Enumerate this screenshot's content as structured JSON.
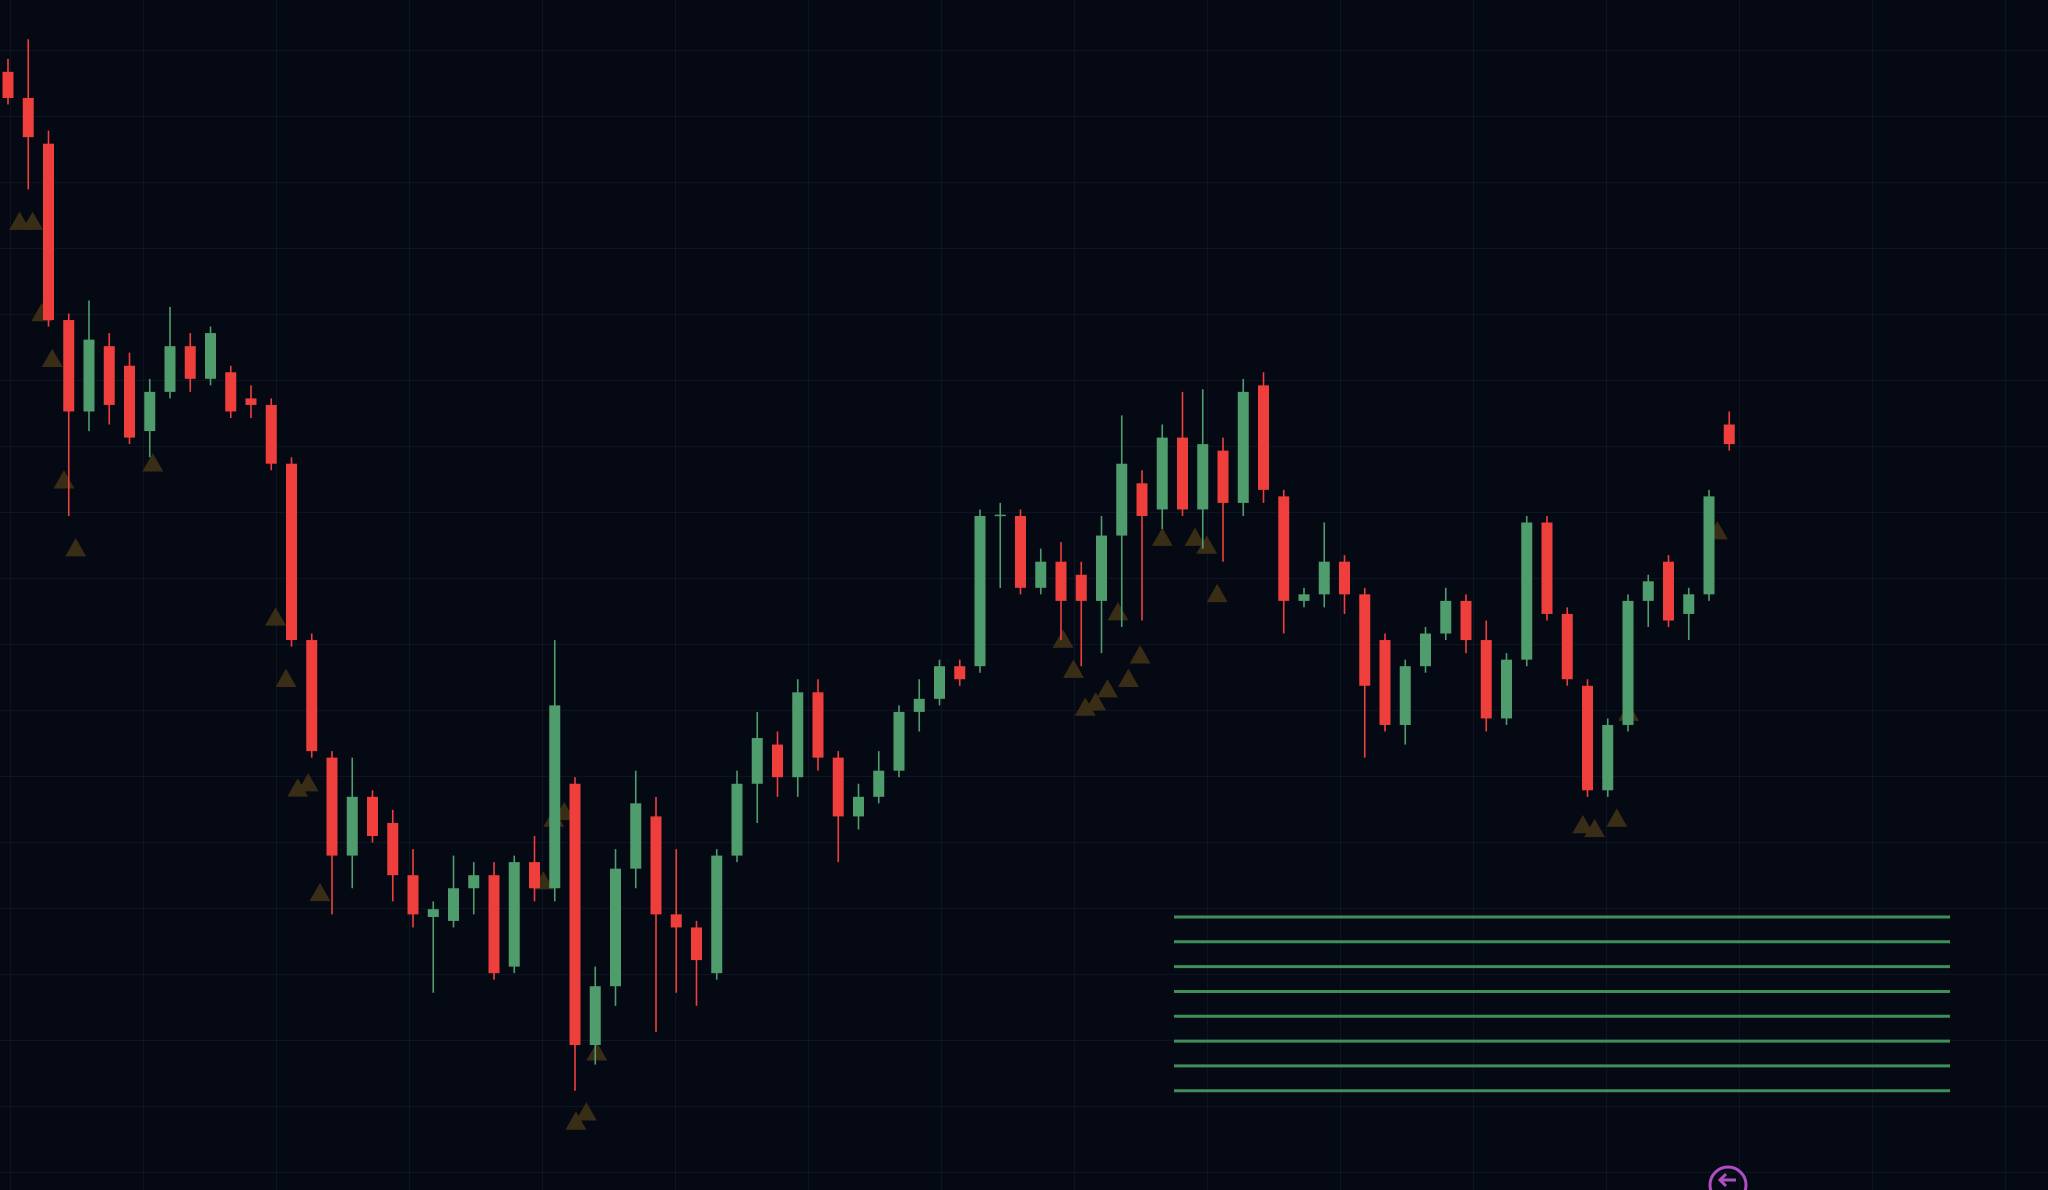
{
  "chart_data": {
    "type": "candlestick",
    "ylim": [
      0,
      911
    ],
    "open": [
      856,
      836,
      801,
      666,
      596,
      646,
      631,
      581,
      611,
      646,
      621,
      626,
      606,
      601,
      556,
      421,
      331,
      256,
      301,
      281,
      241,
      209,
      206,
      231,
      241,
      171,
      251,
      231,
      311,
      111,
      156,
      246,
      286,
      211,
      201,
      166,
      256,
      311,
      341,
      316,
      381,
      331,
      286,
      301,
      321,
      366,
      376,
      401,
      401,
      516,
      516,
      461,
      481,
      471,
      451,
      501,
      541,
      521,
      576,
      521,
      566,
      526,
      616,
      531,
      451,
      456,
      481,
      456,
      421,
      356,
      401,
      426,
      451,
      421,
      361,
      406,
      511,
      441,
      386,
      306,
      356,
      451,
      481,
      441,
      456,
      586
    ],
    "high": [
      866,
      881,
      811,
      671,
      681,
      656,
      641,
      621,
      676,
      656,
      661,
      631,
      616,
      606,
      561,
      426,
      336,
      331,
      306,
      291,
      261,
      221,
      256,
      251,
      251,
      256,
      271,
      421,
      316,
      171,
      261,
      321,
      301,
      261,
      206,
      261,
      321,
      366,
      351,
      391,
      391,
      336,
      311,
      336,
      371,
      391,
      406,
      406,
      521,
      526,
      521,
      491,
      496,
      481,
      516,
      593,
      551,
      586,
      611,
      613,
      576,
      621,
      626,
      536,
      461,
      511,
      486,
      461,
      426,
      406,
      431,
      461,
      456,
      436,
      411,
      516,
      516,
      446,
      391,
      361,
      456,
      471,
      486,
      461,
      536,
      596
    ],
    "low": [
      831,
      766,
      661,
      516,
      581,
      586,
      571,
      561,
      606,
      611,
      616,
      591,
      591,
      551,
      416,
      331,
      211,
      231,
      266,
      221,
      201,
      151,
      201,
      211,
      161,
      166,
      221,
      221,
      76,
      96,
      141,
      231,
      121,
      151,
      141,
      161,
      251,
      281,
      301,
      301,
      321,
      251,
      276,
      296,
      316,
      351,
      371,
      386,
      396,
      461,
      456,
      456,
      421,
      401,
      411,
      431,
      436,
      506,
      516,
      491,
      481,
      516,
      526,
      426,
      446,
      446,
      441,
      331,
      351,
      341,
      396,
      421,
      411,
      351,
      356,
      401,
      436,
      386,
      301,
      301,
      351,
      431,
      431,
      421,
      451,
      566
    ],
    "close": [
      836,
      806,
      666,
      596,
      651,
      601,
      576,
      611,
      646,
      621,
      656,
      596,
      601,
      556,
      421,
      336,
      256,
      301,
      271,
      241,
      211,
      215,
      231,
      241,
      166,
      251,
      231,
      371,
      111,
      156,
      246,
      296,
      211,
      201,
      176,
      256,
      311,
      346,
      316,
      381,
      331,
      286,
      301,
      321,
      366,
      376,
      401,
      391,
      516,
      517,
      461,
      481,
      451,
      451,
      501,
      556,
      516,
      576,
      521,
      571,
      526,
      611,
      536,
      451,
      456,
      481,
      456,
      386,
      356,
      401,
      426,
      451,
      421,
      361,
      406,
      511,
      441,
      391,
      306,
      356,
      451,
      466,
      436,
      456,
      531,
      571
    ],
    "up_color": "#4f9d6c",
    "down_color": "#ee3f3c",
    "levels": [
      209,
      190,
      171,
      152,
      133,
      114,
      95,
      76
    ],
    "level_color": "#3f8f58"
  }
}
